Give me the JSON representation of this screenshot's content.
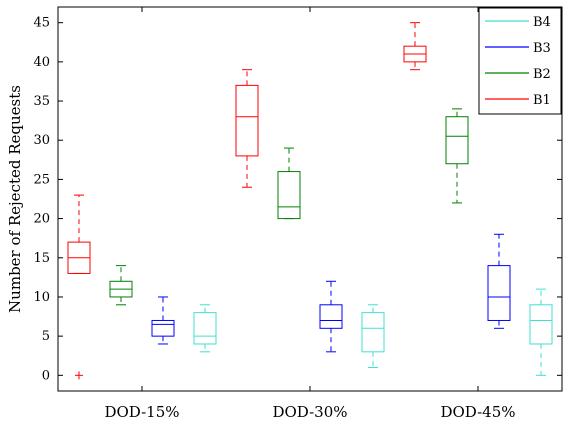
{
  "chart_data": {
    "type": "boxplot",
    "title": "",
    "xlabel": "",
    "ylabel": "Number of Rejected Requests",
    "ylim": [
      -2,
      47
    ],
    "yticks": [
      0,
      5,
      10,
      15,
      20,
      25,
      30,
      35,
      40,
      45
    ],
    "categories": [
      "DOD-15%",
      "DOD-30%",
      "DOD-45%"
    ],
    "grid": false,
    "legend_position": "top-right",
    "legend_order": [
      "B4",
      "B3",
      "B2",
      "B1"
    ],
    "series": [
      {
        "name": "B1",
        "color": "#ff0000",
        "boxes": [
          {
            "whisker_low": 13,
            "q1": 13,
            "median": 15,
            "q3": 17,
            "whisker_high": 23,
            "outliers": [
              0
            ]
          },
          {
            "whisker_low": 24,
            "q1": 28,
            "median": 33,
            "q3": 37,
            "whisker_high": 39,
            "outliers": []
          },
          {
            "whisker_low": 39,
            "q1": 40,
            "median": 41,
            "q3": 42,
            "whisker_high": 45,
            "outliers": []
          }
        ]
      },
      {
        "name": "B2",
        "color": "#008000",
        "boxes": [
          {
            "whisker_low": 9,
            "q1": 10,
            "median": 11,
            "q3": 12,
            "whisker_high": 14,
            "outliers": []
          },
          {
            "whisker_low": 20,
            "q1": 20,
            "median": 21.5,
            "q3": 26,
            "whisker_high": 29,
            "outliers": []
          },
          {
            "whisker_low": 22,
            "q1": 27,
            "median": 30.5,
            "q3": 33,
            "whisker_high": 34,
            "outliers": []
          }
        ]
      },
      {
        "name": "B3",
        "color": "#0000ff",
        "boxes": [
          {
            "whisker_low": 4,
            "q1": 5,
            "median": 6.5,
            "q3": 7,
            "whisker_high": 10,
            "outliers": []
          },
          {
            "whisker_low": 3,
            "q1": 6,
            "median": 7,
            "q3": 9,
            "whisker_high": 12,
            "outliers": []
          },
          {
            "whisker_low": 6,
            "q1": 7,
            "median": 10,
            "q3": 14,
            "whisker_high": 18,
            "outliers": []
          }
        ]
      },
      {
        "name": "B4",
        "color": "#40e0d0",
        "boxes": [
          {
            "whisker_low": 3,
            "q1": 4,
            "median": 5,
            "q3": 8,
            "whisker_high": 9,
            "outliers": []
          },
          {
            "whisker_low": 1,
            "q1": 3,
            "median": 6,
            "q3": 8,
            "whisker_high": 9,
            "outliers": []
          },
          {
            "whisker_low": 0,
            "q1": 4,
            "median": 7,
            "q3": 9,
            "whisker_high": 11,
            "outliers": []
          }
        ]
      }
    ]
  }
}
